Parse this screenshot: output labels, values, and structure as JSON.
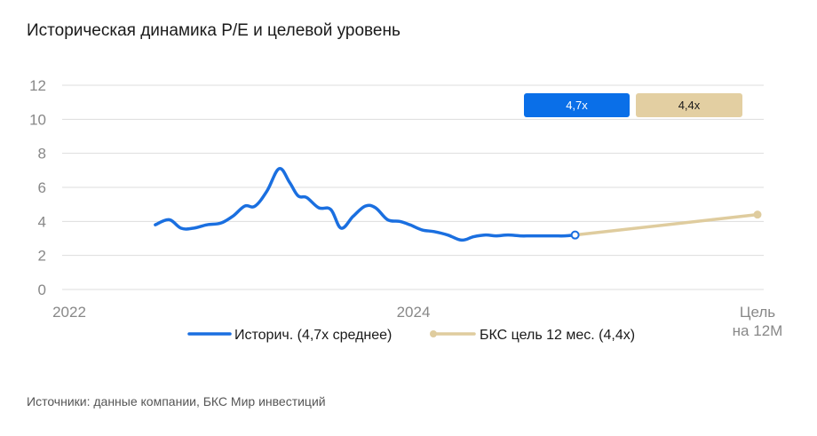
{
  "title": "Историческая динамика P/E и целевой уровень",
  "source": "Источники: данные компании, БКС Мир инвестиций",
  "colors": {
    "historical": "#1a6fe0",
    "target": "#dfcc9e",
    "grid": "#dddddd",
    "badge_hist": "#0a6fe8",
    "badge_target": "#e3cfa2"
  },
  "chart_data": {
    "type": "line",
    "ylim": [
      0,
      12
    ],
    "yticks": [
      "0",
      "2",
      "4",
      "6",
      "8",
      "10",
      "12"
    ],
    "xticks": [
      {
        "label": "2022",
        "x": 2022.0
      },
      {
        "label": "2024",
        "x": 2024.0
      },
      {
        "label": "Цель\nна 12М",
        "x": 2026.0
      }
    ],
    "grid": true,
    "legend_position": "bottom",
    "series": [
      {
        "name": "Историч. (4,7x среднее)",
        "x": [
          2022.5,
          2022.58,
          2022.65,
          2022.72,
          2022.8,
          2022.88,
          2022.95,
          2023.02,
          2023.08,
          2023.15,
          2023.22,
          2023.28,
          2023.33,
          2023.38,
          2023.45,
          2023.52,
          2023.58,
          2023.65,
          2023.72,
          2023.78,
          2023.85,
          2023.92,
          2023.98,
          2024.05,
          2024.12,
          2024.2,
          2024.28,
          2024.35,
          2024.42,
          2024.48,
          2024.55,
          2024.62,
          2024.68,
          2024.75,
          2024.82,
          2024.88,
          2024.94
        ],
        "values": [
          3.8,
          4.1,
          3.6,
          3.6,
          3.8,
          3.9,
          4.3,
          4.9,
          4.9,
          5.8,
          7.1,
          6.3,
          5.5,
          5.4,
          4.8,
          4.7,
          3.6,
          4.3,
          4.9,
          4.8,
          4.1,
          4.0,
          3.8,
          3.5,
          3.4,
          3.2,
          2.9,
          3.1,
          3.2,
          3.15,
          3.2,
          3.15,
          3.15,
          3.15,
          3.15,
          3.15,
          3.2
        ]
      },
      {
        "name": "БКС цель 12 мес. (4,4x)",
        "x": [
          2024.94,
          2026.0
        ],
        "values": [
          3.2,
          4.4
        ]
      }
    ],
    "badges": [
      "4,7x",
      "4,4x"
    ]
  }
}
